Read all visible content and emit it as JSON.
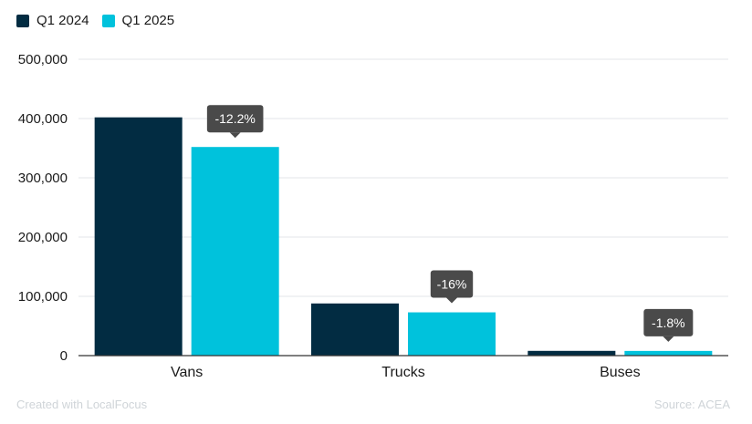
{
  "colors": {
    "series_2024": "#022c42",
    "series_2025": "#00c2dc",
    "grid": "#e3e6e8",
    "axis": "#333333",
    "tooltip_bg": "#4a4a4a",
    "footer_text": "#cfd4d8"
  },
  "legend": [
    {
      "label": "Q1 2024",
      "color": "#022c42"
    },
    {
      "label": "Q1 2025",
      "color": "#00c2dc"
    }
  ],
  "footer": {
    "credit": "Created with LocalFocus",
    "source": "Source: ACEA"
  },
  "chart_data": {
    "type": "bar",
    "title": "",
    "xlabel": "",
    "ylabel": "",
    "categories": [
      "Vans",
      "Trucks",
      "Buses"
    ],
    "series": [
      {
        "name": "Q1 2024",
        "values": [
          402000,
          88000,
          8000
        ]
      },
      {
        "name": "Q1 2025",
        "values": [
          352000,
          73000,
          7900
        ]
      }
    ],
    "annotations": [
      "-12.2%",
      "-16%",
      "-1.8%"
    ],
    "ylim": [
      0,
      500000
    ],
    "yticks": [
      0,
      100000,
      200000,
      300000,
      400000,
      500000
    ],
    "ytick_labels": [
      "0",
      "100,000",
      "200,000",
      "300,000",
      "400,000",
      "500,000"
    ],
    "grid": true,
    "legend_position": "top-left"
  }
}
